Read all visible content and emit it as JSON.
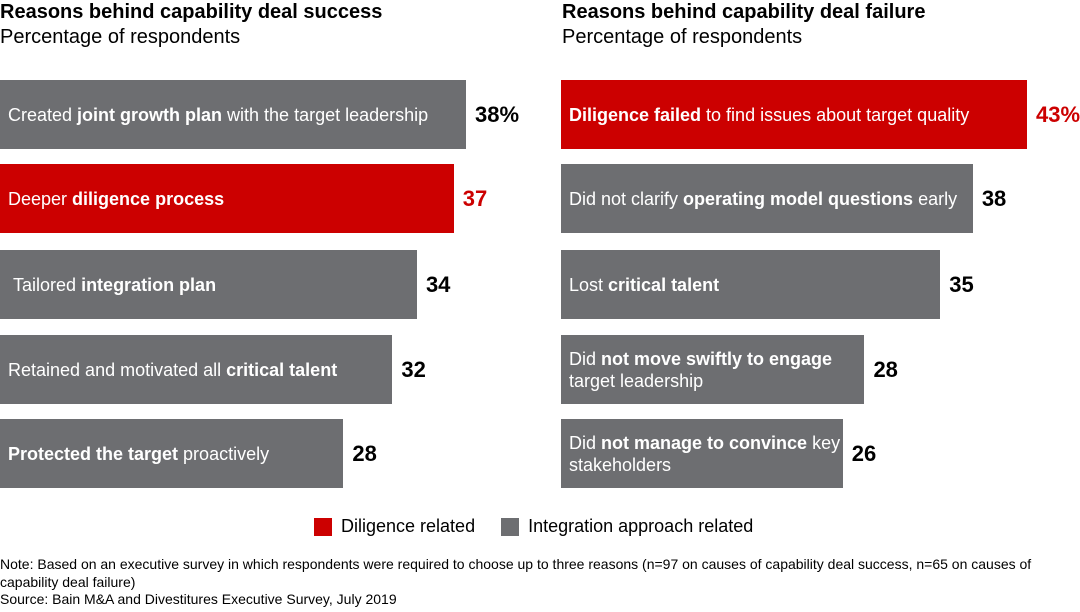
{
  "colors": {
    "diligence": "#cc0000",
    "integration": "#6d6e71"
  },
  "legend": {
    "diligence": "Diligence related",
    "integration": "Integration approach related"
  },
  "note": "Note: Based on an executive survey in which respondents were required to choose up to three reasons (n=97 on causes of capability deal success, n=65 on causes of capability deal failure)",
  "source": "Source: Bain M&A and Divestitures Executive Survey, July 2019",
  "chart_data": [
    {
      "type": "bar",
      "orientation": "horizontal",
      "title": "Reasons behind capability deal success",
      "subtitle": "Percentage of respondents",
      "unit": "%",
      "items": [
        {
          "parts": [
            {
              "t": "Created ",
              "b": false
            },
            {
              "t": "joint growth plan",
              "b": true
            },
            {
              "t": " with the target leadership",
              "b": false
            }
          ],
          "value": 38,
          "label": "38%",
          "category": "integration"
        },
        {
          "parts": [
            {
              "t": "Deeper ",
              "b": false
            },
            {
              "t": "diligence process",
              "b": true
            }
          ],
          "value": 37,
          "label": "37",
          "category": "diligence"
        },
        {
          "parts": [
            {
              "t": " Tailored ",
              "b": false
            },
            {
              "t": "integration plan",
              "b": true
            }
          ],
          "value": 34,
          "label": "34",
          "category": "integration"
        },
        {
          "parts": [
            {
              "t": "Retained and motivated all ",
              "b": false
            },
            {
              "t": "critical talent",
              "b": true
            }
          ],
          "value": 32,
          "label": "32",
          "category": "integration"
        },
        {
          "parts": [
            {
              "t": "Protected the target",
              "b": true
            },
            {
              "t": " proactively",
              "b": false
            }
          ],
          "value": 28,
          "label": "28",
          "category": "integration"
        }
      ]
    },
    {
      "type": "bar",
      "orientation": "horizontal",
      "title": "Reasons behind capability deal failure",
      "subtitle": "Percentage of respondents",
      "unit": "%",
      "items": [
        {
          "parts": [
            {
              "t": "Diligence failed",
              "b": true
            },
            {
              "t": " to find issues about target quality",
              "b": false
            }
          ],
          "value": 43,
          "label": "43%",
          "category": "diligence"
        },
        {
          "parts": [
            {
              "t": "Did not clarify ",
              "b": false
            },
            {
              "t": "operating model questions",
              "b": true
            },
            {
              "t": " early",
              "b": false
            }
          ],
          "value": 38,
          "label": "38",
          "category": "integration"
        },
        {
          "parts": [
            {
              "t": "Lost ",
              "b": false
            },
            {
              "t": "critical talent",
              "b": true
            }
          ],
          "value": 35,
          "label": "35",
          "category": "integration"
        },
        {
          "parts": [
            {
              "t": "Did ",
              "b": false
            },
            {
              "t": "not move swiftly to engage",
              "b": true
            },
            {
              "t": " target leadership",
              "b": false
            }
          ],
          "value": 28,
          "label": "28",
          "category": "integration"
        },
        {
          "parts": [
            {
              "t": "Did ",
              "b": false
            },
            {
              "t": "not manage to convince",
              "b": true
            },
            {
              "t": " key stakeholders",
              "b": false
            }
          ],
          "value": 26,
          "label": "26",
          "category": "integration"
        }
      ]
    }
  ]
}
